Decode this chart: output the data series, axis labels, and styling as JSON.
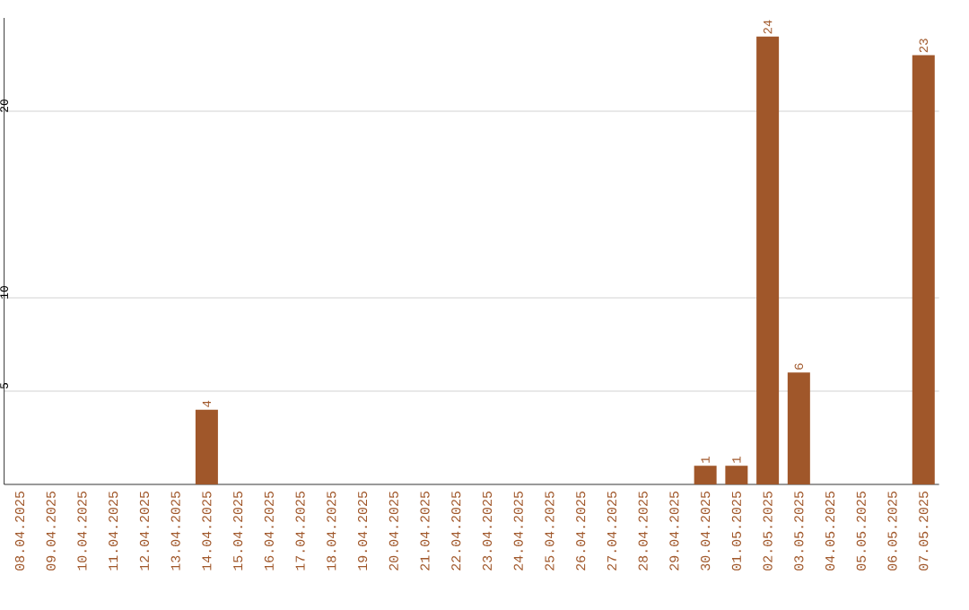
{
  "chart_data": {
    "type": "bar",
    "categories": [
      "08.04.2025",
      "09.04.2025",
      "10.04.2025",
      "11.04.2025",
      "12.04.2025",
      "13.04.2025",
      "14.04.2025",
      "15.04.2025",
      "16.04.2025",
      "17.04.2025",
      "18.04.2025",
      "19.04.2025",
      "20.04.2025",
      "21.04.2025",
      "22.04.2025",
      "23.04.2025",
      "24.04.2025",
      "25.04.2025",
      "26.04.2025",
      "27.04.2025",
      "28.04.2025",
      "29.04.2025",
      "30.04.2025",
      "01.05.2025",
      "02.05.2025",
      "03.05.2025",
      "04.05.2025",
      "05.05.2025",
      "06.05.2025",
      "07.05.2025"
    ],
    "values": [
      0,
      0,
      0,
      0,
      0,
      0,
      4,
      0,
      0,
      0,
      0,
      0,
      0,
      0,
      0,
      0,
      0,
      0,
      0,
      0,
      0,
      0,
      1,
      1,
      24,
      6,
      0,
      0,
      0,
      23
    ],
    "value_labels": [
      null,
      null,
      null,
      null,
      null,
      null,
      "4",
      null,
      null,
      null,
      null,
      null,
      null,
      null,
      null,
      null,
      null,
      null,
      null,
      null,
      null,
      null,
      "1",
      "1",
      "24",
      "6",
      null,
      null,
      null,
      "23"
    ],
    "color": "#a0572a",
    "ylim": [
      0,
      25
    ],
    "yticks": [
      5,
      10,
      20
    ],
    "grid": "y"
  }
}
